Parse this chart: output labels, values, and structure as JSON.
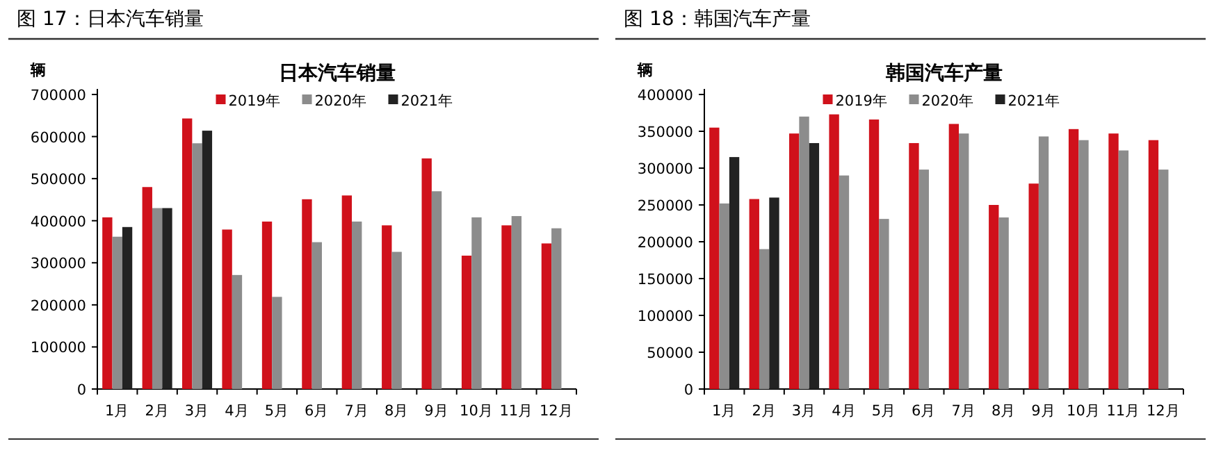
{
  "chart_data": [
    {
      "type": "bar",
      "title": "图 17：日本汽车销量",
      "subtitle": "日本汽车销量",
      "ylabel": "辆",
      "categories": [
        "1月",
        "2月",
        "3月",
        "4月",
        "5月",
        "6月",
        "7月",
        "8月",
        "9月",
        "10月",
        "11月",
        "12月"
      ],
      "series": [
        {
          "name": "2019年",
          "color": "#d0111b",
          "values": [
            408000,
            480000,
            643000,
            379000,
            398000,
            451000,
            460000,
            389000,
            548000,
            317000,
            389000,
            346000
          ]
        },
        {
          "name": "2020年",
          "color": "#8c8c8c",
          "values": [
            362000,
            430000,
            584000,
            271000,
            219000,
            349000,
            398000,
            326000,
            470000,
            408000,
            411000,
            382000
          ]
        },
        {
          "name": "2021年",
          "color": "#222222",
          "values": [
            385000,
            430000,
            614000,
            null,
            null,
            null,
            null,
            null,
            null,
            null,
            null,
            null
          ]
        }
      ],
      "ylim": [
        0,
        700000
      ],
      "yticks": [
        0,
        100000,
        200000,
        300000,
        400000,
        500000,
        600000,
        700000
      ],
      "legend": "top",
      "grid": false
    },
    {
      "type": "bar",
      "title": "图 18：韩国汽车产量",
      "subtitle": "韩国汽车产量",
      "ylabel": "辆",
      "categories": [
        "1月",
        "2月",
        "3月",
        "4月",
        "5月",
        "6月",
        "7月",
        "8月",
        "9月",
        "10月",
        "11月",
        "12月"
      ],
      "series": [
        {
          "name": "2019年",
          "color": "#d0111b",
          "values": [
            355000,
            258000,
            347000,
            373000,
            366000,
            334000,
            360000,
            250000,
            279000,
            353000,
            347000,
            338000
          ]
        },
        {
          "name": "2020年",
          "color": "#8c8c8c",
          "values": [
            252000,
            190000,
            370000,
            290000,
            231000,
            298000,
            347000,
            233000,
            343000,
            338000,
            324000,
            298000
          ]
        },
        {
          "name": "2021年",
          "color": "#222222",
          "values": [
            315000,
            260000,
            334000,
            null,
            null,
            null,
            null,
            null,
            null,
            null,
            null,
            null
          ]
        }
      ],
      "ylim": [
        0,
        400000
      ],
      "yticks": [
        0,
        50000,
        100000,
        150000,
        200000,
        250000,
        300000,
        350000,
        400000
      ],
      "legend": "top",
      "grid": false
    }
  ]
}
